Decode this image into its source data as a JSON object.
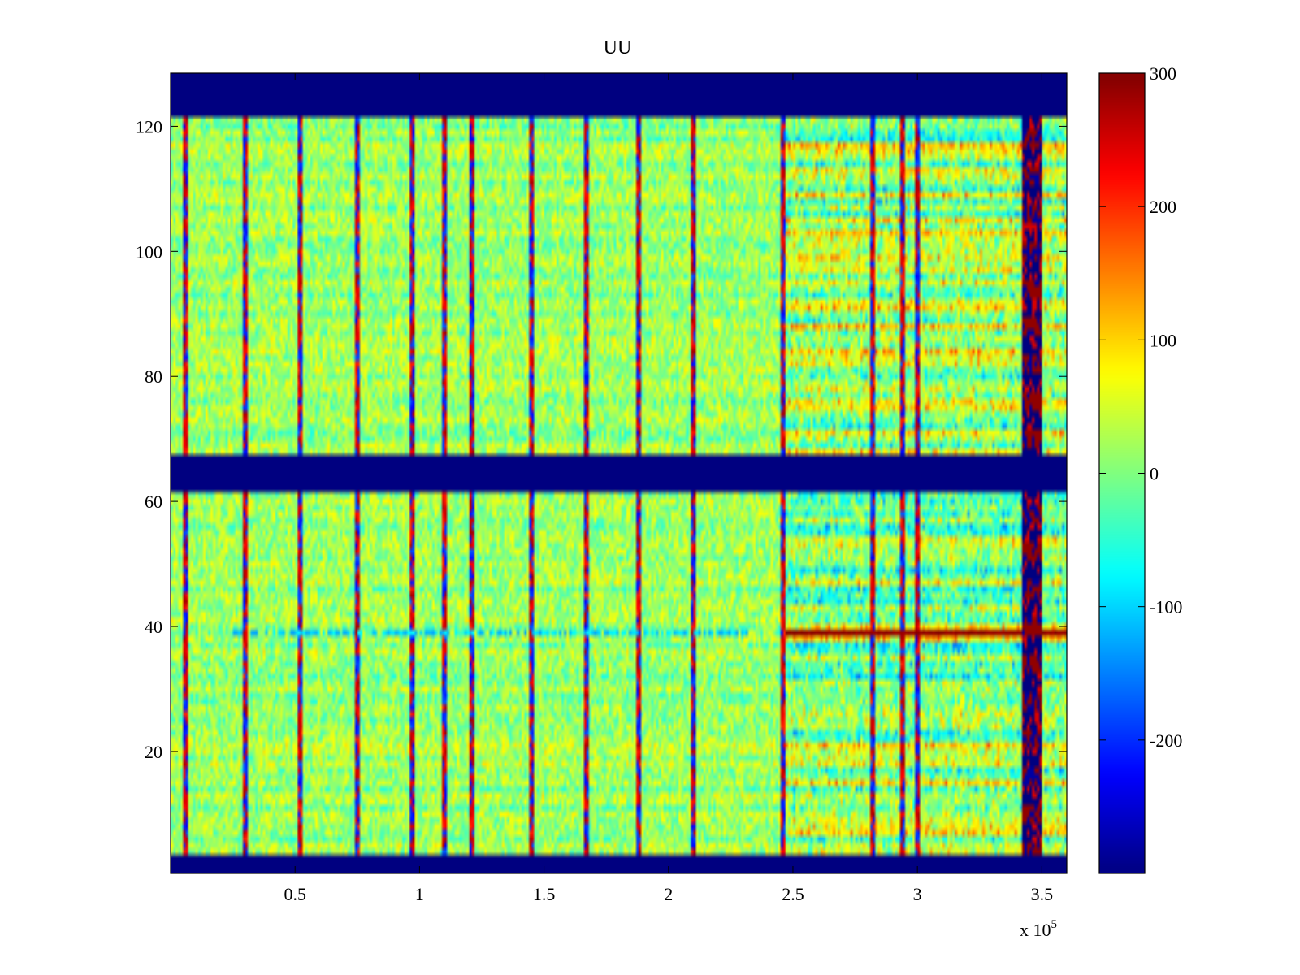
{
  "chart_data": {
    "type": "heatmap",
    "title": "UU",
    "xlabel": "",
    "ylabel": "",
    "x_exponent_label": "x 10",
    "x_exponent_power": "5",
    "xlim": [
      0.0,
      3.6
    ],
    "ylim": [
      0.5,
      128.5
    ],
    "x_ticks": [
      0.5,
      1,
      1.5,
      2,
      2.5,
      3,
      3.5
    ],
    "x_tick_labels": [
      "0.5",
      "1",
      "1.5",
      "2",
      "2.5",
      "3",
      "3.5"
    ],
    "y_ticks": [
      20,
      40,
      60,
      80,
      100,
      120
    ],
    "y_tick_labels": [
      "20",
      "40",
      "60",
      "80",
      "100",
      "120"
    ],
    "colormap": "jet",
    "clim": [
      -300,
      300
    ],
    "colorbar": {
      "ticks": [
        300,
        200,
        100,
        0,
        -100,
        -200
      ],
      "tick_labels": [
        "300",
        "200",
        "100",
        "0",
        "-100",
        "-200"
      ]
    },
    "baseline_value": 15,
    "masked_value": -300,
    "masked_row_bands": [
      [
        1,
        3
      ],
      [
        62,
        67
      ],
      [
        122,
        128
      ]
    ],
    "spike_columns_x": [
      0.06,
      0.3,
      0.52,
      0.75,
      0.97,
      1.1,
      1.21,
      1.45,
      1.67,
      1.88,
      2.1,
      2.46,
      2.82,
      2.94,
      3.0
    ],
    "noisy_region_x": [
      2.46,
      3.6
    ],
    "row39_stripe": {
      "row": 39,
      "x_range_low": [
        0.25,
        2.32
      ],
      "value_low": -100,
      "x_range_high": [
        2.47,
        3.6
      ],
      "value_high": 300
    },
    "masked_column_band_x": [
      3.42,
      3.5
    ],
    "colors": {
      "background": "#ffffff",
      "axes_border": "#000000"
    }
  }
}
